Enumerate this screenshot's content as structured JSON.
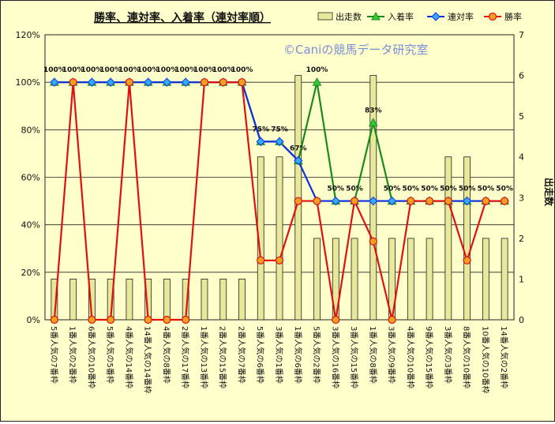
{
  "chart_data": {
    "type": "bar+line",
    "title": "勝率、連対率、入着率（連対率順）",
    "watermark": "©Caniの競馬データ研究室",
    "categories": [
      "5番人気の7番枠",
      "1番人気の2番枠",
      "6番人気の10番枠",
      "5番人気の5番枠",
      "4番人気の14番枠",
      "14番人気の14番枠",
      "4番人気の8番枠",
      "2番人気の17番枠",
      "1番人気の13番枠",
      "2番人気の15番枠",
      "2番人気の7番枠",
      "5番人気の6番枠",
      "3番人気の1番枠",
      "1番人気の6番枠",
      "5番人気の2番枠",
      "3番人気の16番枠",
      "3番人気の15番枠",
      "1番人気の8番枠",
      "3番人気の9番枠",
      "4番人気の10番枠",
      "9番人気の15番枠",
      "3番人気の3番枠",
      "8番人気の10番枠",
      "10番人気の10番枠",
      "14番人気の2番枠"
    ],
    "y_left": {
      "min": 0,
      "max": 120,
      "step": 20,
      "ticks": [
        "0%",
        "20%",
        "40%",
        "60%",
        "80%",
        "100%",
        "120%"
      ]
    },
    "y_right": {
      "min": 0,
      "max": 7,
      "step": 1,
      "label": "出走数",
      "ticks": [
        "0",
        "1",
        "2",
        "3",
        "4",
        "5",
        "6",
        "7"
      ]
    },
    "legend": {
      "position": "top-right"
    },
    "series": [
      {
        "name": "出走数",
        "kind": "bar",
        "axis": "right",
        "color": "#e8e89a",
        "values": [
          1,
          1,
          1,
          1,
          1,
          1,
          1,
          1,
          1,
          1,
          1,
          4,
          4,
          6,
          2,
          2,
          2,
          6,
          2,
          2,
          2,
          4,
          4,
          2,
          2
        ]
      },
      {
        "name": "入着率",
        "kind": "line",
        "axis": "left",
        "color": "#1a8a1a",
        "values": [
          100,
          100,
          100,
          100,
          100,
          100,
          100,
          100,
          100,
          100,
          100,
          75,
          75,
          67,
          100,
          50,
          50,
          83,
          50,
          50,
          50,
          50,
          50,
          50,
          50
        ]
      },
      {
        "name": "連対率",
        "kind": "line",
        "axis": "left",
        "color": "#1030e0",
        "values": [
          100,
          100,
          100,
          100,
          100,
          100,
          100,
          100,
          100,
          100,
          100,
          75,
          75,
          67,
          50,
          50,
          50,
          50,
          50,
          50,
          50,
          50,
          50,
          50,
          50
        ]
      },
      {
        "name": "勝率",
        "kind": "line",
        "axis": "left",
        "color": "#e01010",
        "values": [
          0,
          100,
          0,
          0,
          100,
          0,
          0,
          0,
          100,
          100,
          100,
          25,
          25,
          50,
          50,
          0,
          50,
          33,
          0,
          50,
          50,
          50,
          25,
          50,
          50
        ]
      }
    ],
    "data_labels": [
      "100%",
      "100%",
      "100%",
      "100%",
      "100%",
      "100%",
      "100%",
      "100%",
      "100%",
      "100%",
      "100%",
      "75%",
      "75%",
      "67%",
      "100%",
      "50%",
      "50%",
      "83%",
      "50%",
      "50%",
      "50%",
      "50%",
      "50%",
      "50%",
      "50%"
    ]
  }
}
